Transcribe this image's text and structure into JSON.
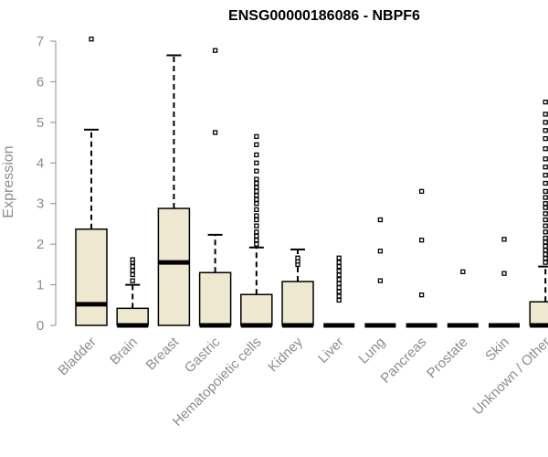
{
  "chart_data": {
    "type": "box",
    "title": "ENSG00000186086 - NBPF6",
    "xlabel": "",
    "ylabel": "Expression",
    "ylim": [
      0,
      7
    ],
    "yticks": [
      0,
      1,
      2,
      3,
      4,
      5,
      6,
      7
    ],
    "box_fill": "#efe8d0",
    "box_stroke": "#000000",
    "categories": [
      {
        "label": "Bladder",
        "q1": 0,
        "median": 0.52,
        "q3": 2.37,
        "whisker_low": 0,
        "whisker_high": 4.82,
        "outliers": [
          7.05
        ]
      },
      {
        "label": "Brain",
        "q1": 0,
        "median": 0,
        "q3": 0.42,
        "whisker_low": 0,
        "whisker_high": 1.0,
        "outliers": [
          1.1,
          1.25,
          1.35,
          1.45,
          1.55,
          1.62
        ]
      },
      {
        "label": "Breast",
        "q1": 0,
        "median": 1.55,
        "q3": 2.88,
        "whisker_low": 0,
        "whisker_high": 6.65,
        "outliers": []
      },
      {
        "label": "Gastric",
        "q1": 0,
        "median": 0,
        "q3": 1.3,
        "whisker_low": 0,
        "whisker_high": 2.23,
        "outliers": [
          4.75,
          6.77
        ]
      },
      {
        "label": "Hematopoietic cells",
        "q1": 0,
        "median": 0,
        "q3": 0.76,
        "whisker_low": 0,
        "whisker_high": 1.92,
        "outliers": [
          2.0,
          2.1,
          2.2,
          2.3,
          2.45,
          2.6,
          2.7,
          2.85,
          3.0,
          3.1,
          3.2,
          3.3,
          3.4,
          3.5,
          3.6,
          3.8,
          4.0,
          4.2,
          4.45,
          4.65
        ]
      },
      {
        "label": "Kidney",
        "q1": 0,
        "median": 0,
        "q3": 1.08,
        "whisker_low": 0,
        "whisker_high": 1.87,
        "outliers": [
          1.5,
          1.58,
          1.66
        ]
      },
      {
        "label": "Liver",
        "q1": 0,
        "median": 0,
        "q3": 0,
        "whisker_low": 0,
        "whisker_high": 0,
        "outliers": [
          0.62,
          0.72,
          0.83,
          0.93,
          1.03,
          1.13,
          1.24,
          1.34,
          1.45,
          1.55,
          1.66
        ]
      },
      {
        "label": "Lung",
        "q1": 0,
        "median": 0,
        "q3": 0,
        "whisker_low": 0,
        "whisker_high": 0,
        "outliers": [
          1.1,
          1.83,
          2.6
        ]
      },
      {
        "label": "Pancreas",
        "q1": 0,
        "median": 0,
        "q3": 0,
        "whisker_low": 0,
        "whisker_high": 0,
        "outliers": [
          0.75,
          2.1,
          3.3
        ]
      },
      {
        "label": "Prostate",
        "q1": 0,
        "median": 0,
        "q3": 0,
        "whisker_low": 0,
        "whisker_high": 0,
        "outliers": [
          1.32
        ]
      },
      {
        "label": "Skin",
        "q1": 0,
        "median": 0,
        "q3": 0,
        "whisker_low": 0,
        "whisker_high": 0,
        "outliers": [
          1.28,
          2.12
        ]
      },
      {
        "label": "Unknown / Other",
        "q1": 0,
        "median": 0,
        "q3": 0.58,
        "whisker_low": 0,
        "whisker_high": 1.45,
        "outliers": [
          1.55,
          1.65,
          1.75,
          1.85,
          1.95,
          2.05,
          2.15,
          2.3,
          2.45,
          2.6,
          2.75,
          2.9,
          3.0,
          3.15,
          3.3,
          3.5,
          3.7,
          3.9,
          4.1,
          4.35,
          4.6,
          4.8,
          5.0,
          5.2,
          5.5
        ]
      }
    ]
  }
}
